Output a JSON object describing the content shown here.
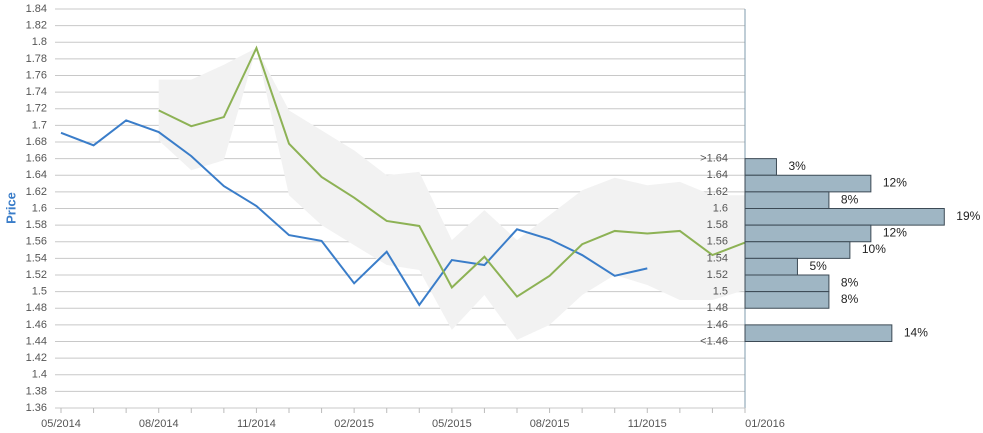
{
  "chart_data": [
    {
      "type": "line",
      "y_label": "Price",
      "categories": [
        "05/2014",
        null,
        null,
        "08/2014",
        null,
        null,
        "11/2014",
        null,
        null,
        "02/2015",
        null,
        null,
        "05/2015",
        null,
        null,
        "08/2015",
        null,
        null,
        "11/2015",
        null,
        null,
        "01/2016"
      ],
      "ylim": [
        1.36,
        1.84
      ],
      "yticks": [
        1.36,
        1.38,
        1.4,
        1.42,
        1.44,
        1.46,
        1.48,
        1.5,
        1.52,
        1.54,
        1.56,
        1.58,
        1.6,
        1.62,
        1.64,
        1.66,
        1.68,
        1.7,
        1.72,
        1.74,
        1.76,
        1.78,
        1.8,
        1.82,
        1.84
      ],
      "grid": true,
      "band": {
        "color": "#f2f2f2",
        "upper": [
          null,
          null,
          null,
          1.755,
          1.755,
          1.773,
          1.793,
          1.718,
          1.694,
          1.67,
          1.64,
          1.644,
          1.562,
          1.598,
          1.562,
          1.592,
          1.622,
          1.637,
          1.628,
          1.632,
          1.616,
          1.616
        ],
        "lower": [
          null,
          null,
          null,
          1.682,
          1.646,
          1.658,
          1.793,
          1.616,
          1.58,
          1.556,
          1.532,
          1.526,
          1.454,
          1.496,
          1.442,
          1.46,
          1.496,
          1.52,
          1.508,
          1.49,
          1.49,
          1.502
        ]
      },
      "series": [
        {
          "color": "#3a7dc9",
          "values": [
            1.691,
            1.676,
            1.706,
            1.692,
            1.663,
            1.627,
            1.603,
            1.568,
            1.561,
            1.51,
            1.548,
            1.484,
            1.538,
            1.532,
            1.575,
            1.563,
            1.544,
            1.519,
            1.528,
            null,
            null,
            null
          ]
        },
        {
          "color": "#8db255",
          "values": [
            null,
            null,
            null,
            1.718,
            1.699,
            1.71,
            1.793,
            1.678,
            1.638,
            1.613,
            1.585,
            1.579,
            1.505,
            1.542,
            1.494,
            1.519,
            1.557,
            1.573,
            1.57,
            1.573,
            1.544,
            1.559
          ]
        }
      ]
    },
    {
      "type": "histogram",
      "orientation": "horizontal",
      "color": "#9fb6c4",
      "bins": [
        1.66,
        1.64,
        1.62,
        1.6,
        1.58,
        1.56,
        1.54,
        1.52,
        1.5,
        1.48,
        1.46,
        1.44
      ],
      "values": [
        3,
        12,
        8,
        19,
        12,
        10,
        5,
        8,
        8,
        null,
        14
      ],
      "value_labels": [
        "3%",
        "12%",
        "8%",
        "19%",
        "12%",
        "10%",
        "5%",
        "8%",
        "8%",
        null,
        "14%"
      ],
      "xlim": [
        0,
        22.5
      ],
      "yticks": [
        {
          "value": 1.66,
          "label": ">1.64"
        },
        1.64,
        1.62,
        1.6,
        1.58,
        1.56,
        1.54,
        1.52,
        1.5,
        1.48,
        1.46,
        {
          "value": 1.44,
          "label": "<1.46"
        }
      ]
    }
  ]
}
